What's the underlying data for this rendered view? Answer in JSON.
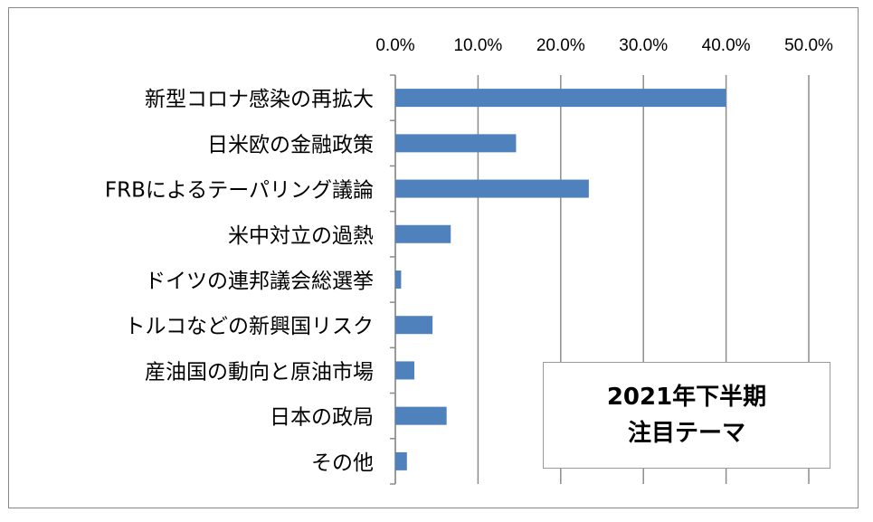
{
  "chart_data": {
    "type": "bar",
    "orientation": "horizontal",
    "title": "2021年下半期 注目テーマ",
    "title_lines": [
      "2021年下半期",
      "注目テーマ"
    ],
    "categories": [
      "新型コロナ感染の再拡大",
      "日米欧の金融政策",
      "FRBによるテーパリング議論",
      "米中対立の過熱",
      "ドイツの連邦議会総選挙",
      "トルコなどの新興国リスク",
      "産油国の動向と原油市場",
      "日本の政局",
      "その他"
    ],
    "values": [
      40.0,
      14.6,
      23.4,
      6.7,
      0.7,
      4.5,
      2.3,
      6.2,
      1.4
    ],
    "xlim": [
      0,
      50
    ],
    "xticks": [
      "0.0%",
      "10.0%",
      "20.0%",
      "30.0%",
      "40.0%",
      "50.0%"
    ],
    "x_axis_position": "top",
    "grid": true,
    "bar_color": "#4f81bd",
    "xlabel": "",
    "ylabel": ""
  }
}
